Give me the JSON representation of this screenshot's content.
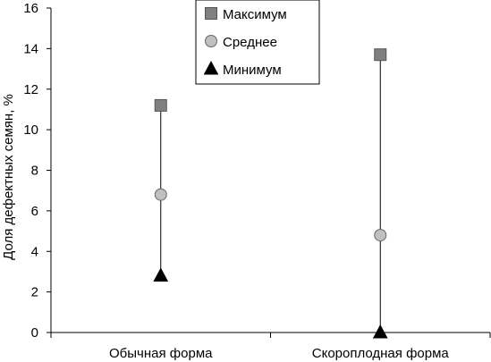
{
  "chart_data": {
    "type": "scatter",
    "categories": [
      "Обычная форма",
      "Скороплодная форма"
    ],
    "series": [
      {
        "name": "Максимум",
        "values": [
          11.2,
          13.7
        ],
        "marker": "square",
        "color": "#808080"
      },
      {
        "name": "Среднее",
        "values": [
          6.8,
          4.8
        ],
        "marker": "circle",
        "color": "#c0c0c0"
      },
      {
        "name": "Минимум",
        "values": [
          2.8,
          0.0
        ],
        "marker": "triangle",
        "color": "#000000"
      }
    ],
    "ylabel": "Доля дефектных семян, %",
    "xlabel": "",
    "ylim": [
      0,
      16
    ],
    "yticks": [
      0,
      2,
      4,
      6,
      8,
      10,
      12,
      14,
      16
    ],
    "grid": false,
    "legend_position": "top-center",
    "range_lines": true
  }
}
